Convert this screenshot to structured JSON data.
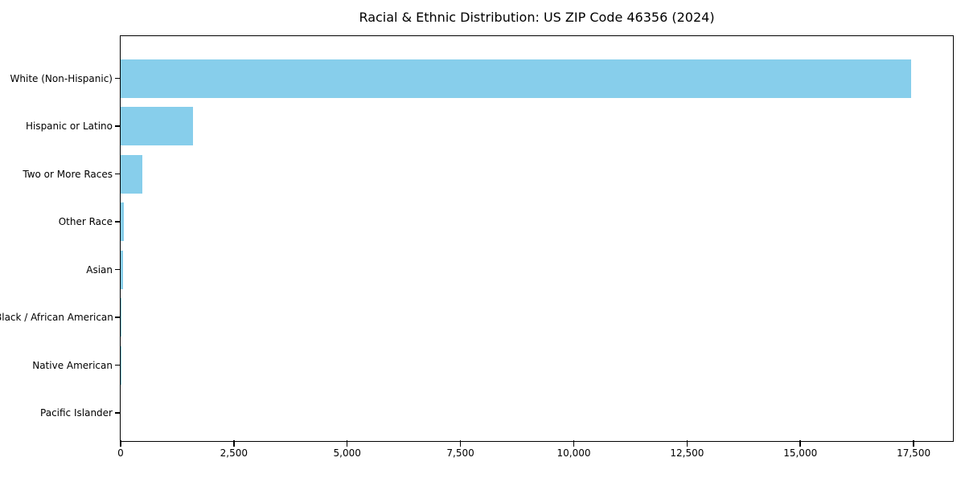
{
  "chart_data": {
    "type": "bar",
    "orientation": "horizontal",
    "title": "Racial & Ethnic Distribution: US ZIP Code 46356 (2024)",
    "xlabel": "",
    "ylabel": "",
    "categories": [
      "White (Non-Hispanic)",
      "Hispanic or Latino",
      "Two or More Races",
      "Other Race",
      "Asian",
      "Black / African American",
      "Native American",
      "Pacific Islander"
    ],
    "values": [
      17450,
      1590,
      480,
      65,
      55,
      15,
      8,
      0
    ],
    "xlim": [
      0,
      18350
    ],
    "xticks": [
      0,
      2500,
      5000,
      7500,
      10000,
      12500,
      15000,
      17500
    ],
    "xtick_labels": [
      "0",
      "2,500",
      "5,000",
      "7,500",
      "10,000",
      "12,500",
      "15,000",
      "17,500"
    ],
    "bar_color": "#87CEEB",
    "spine_color": "#000000",
    "text_color": "#000000",
    "background_color": "#ffffff",
    "grid": false,
    "legend": null
  }
}
